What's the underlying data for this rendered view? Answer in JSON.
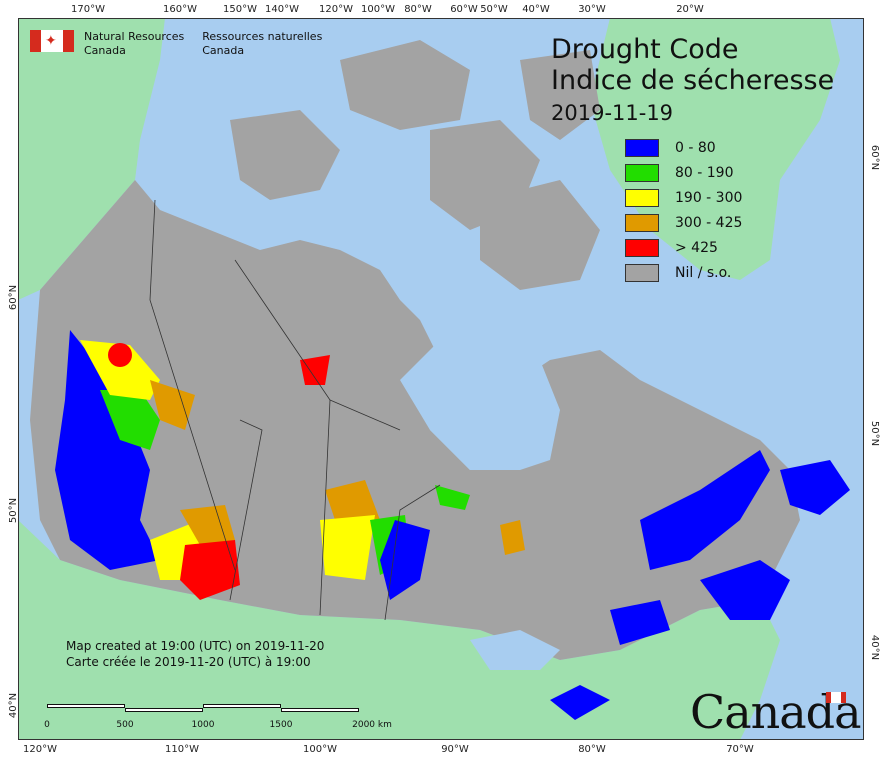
{
  "agency": {
    "name_en_line1": "Natural Resources",
    "name_en_line2": "Canada",
    "name_fr_line1": "Ressources naturelles",
    "name_fr_line2": "Canada"
  },
  "title": {
    "en": "Drought Code",
    "fr": "Indice de sécheresse",
    "date": "2019-11-19"
  },
  "legend": [
    {
      "label": "0 - 80",
      "color": "#0000ff"
    },
    {
      "label": "80 - 190",
      "color": "#22dd00"
    },
    {
      "label": "190 - 300",
      "color": "#ffff00"
    },
    {
      "label": "300 - 425",
      "color": "#e09a00"
    },
    {
      "label": "> 425",
      "color": "#ff0000"
    },
    {
      "label": "Nil / s.o.",
      "color": "#a3a3a3"
    }
  ],
  "credits": {
    "line1": "Map created at 19:00 (UTC) on 2019-11-20",
    "line2": "Carte créée le 2019-11-20 (UTC) à 19:00"
  },
  "scale": {
    "labels": [
      "0",
      "500",
      "1000",
      "1500",
      "2000  km"
    ]
  },
  "graticule": {
    "top": [
      "170°W",
      "160°W",
      "150°W",
      "140°W",
      "120°W",
      "100°W",
      "80°W",
      "60°W",
      "50°W",
      "40°W",
      "30°W",
      "20°W"
    ],
    "bottom": [
      "120°W",
      "110°W",
      "100°W",
      "90°W",
      "80°W",
      "70°W"
    ],
    "left": [
      "60°N",
      "50°N",
      "40°N"
    ],
    "right": [
      "60°N",
      "50°N",
      "40°N"
    ]
  },
  "wordmark": "Canada",
  "colors": {
    "ocean": "#a8cdf0",
    "foreign_land": "#9fe0ae",
    "canada_land": "#a3a3a3",
    "lakes": "#a8cdf0"
  }
}
